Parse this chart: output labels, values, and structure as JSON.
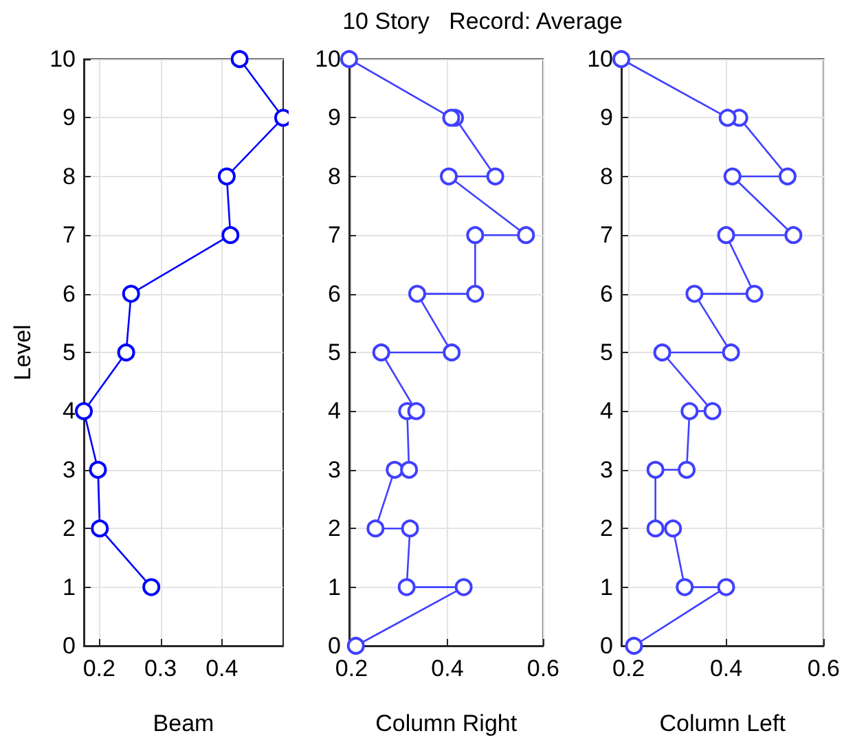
{
  "chart_data": [
    {
      "type": "line",
      "xlabel": "Beam",
      "ylabel": "Level",
      "xlim": [
        0.175,
        0.5
      ],
      "xticks": [
        0.2,
        0.3,
        0.4
      ],
      "ylim": [
        0,
        10
      ],
      "yticks": [
        0,
        1,
        2,
        3,
        4,
        5,
        6,
        7,
        8,
        9,
        10
      ],
      "grid": true,
      "marker": "circle",
      "line_style": "solid",
      "series": [
        {
          "color": "#0000ff",
          "x": [
            0.285,
            0.201,
            0.198,
            0.175,
            0.244,
            0.252,
            0.414,
            0.408,
            0.5,
            0.429
          ],
          "values": [
            1,
            2,
            3,
            4,
            5,
            6,
            7,
            8,
            9,
            10
          ]
        }
      ]
    },
    {
      "type": "line",
      "title": "10 Story   Record: Average",
      "xlabel": "Column Right",
      "xlim": [
        0.195,
        0.6
      ],
      "xticks": [
        0.2,
        0.4,
        0.6
      ],
      "ylim": [
        0,
        10
      ],
      "yticks": [
        0,
        1,
        2,
        3,
        4,
        5,
        6,
        7,
        8,
        9,
        10
      ],
      "grid": true,
      "marker": "circle",
      "line_style": "solid",
      "series": [
        {
          "color": "#4040ff",
          "x": [
            0.209,
            0.434,
            0.315,
            0.322,
            0.25,
            0.29,
            0.32,
            0.316,
            0.335,
            0.262,
            0.409,
            0.337,
            0.458,
            0.458,
            0.564,
            0.403,
            0.5,
            0.416,
            0.408,
            0.195
          ],
          "values": [
            0,
            1,
            1,
            2,
            2,
            3,
            3,
            4,
            4,
            5,
            5,
            6,
            6,
            7,
            7,
            8,
            8,
            9,
            9,
            10
          ]
        }
      ]
    },
    {
      "type": "line",
      "xlabel": "Column Left",
      "xlim": [
        0.185,
        0.6
      ],
      "xticks": [
        0.2,
        0.4,
        0.6
      ],
      "ylim": [
        0,
        10
      ],
      "yticks": [
        0,
        1,
        2,
        3,
        4,
        5,
        6,
        7,
        8,
        9,
        10
      ],
      "grid": true,
      "marker": "circle",
      "line_style": "solid",
      "series": [
        {
          "color": "#4040ff",
          "x": [
            0.211,
            0.4,
            0.315,
            0.291,
            0.255,
            0.255,
            0.319,
            0.325,
            0.372,
            0.269,
            0.41,
            0.335,
            0.458,
            0.4,
            0.538,
            0.413,
            0.526,
            0.427,
            0.403,
            0.185
          ],
          "values": [
            0,
            1,
            1,
            2,
            2,
            3,
            3,
            4,
            4,
            5,
            5,
            6,
            6,
            7,
            7,
            8,
            8,
            9,
            9,
            10
          ]
        }
      ]
    }
  ]
}
